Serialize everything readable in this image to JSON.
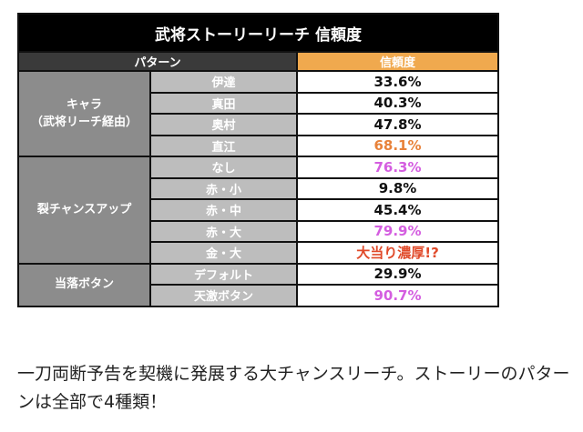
{
  "table": {
    "title": "武将ストーリーリーチ 信頼度",
    "header_pattern": "パターン",
    "header_value": "信頼度",
    "groups": [
      {
        "label_line1": "キャラ",
        "label_line2": "（武将リーチ経由）",
        "rows": [
          {
            "name": "伊達",
            "value": "33.6%",
            "color": "#111111"
          },
          {
            "name": "真田",
            "value": "40.3%",
            "color": "#111111"
          },
          {
            "name": "奥村",
            "value": "47.8%",
            "color": "#111111"
          },
          {
            "name": "直江",
            "value": "68.1%",
            "color": "#e8823a"
          }
        ]
      },
      {
        "label_line1": "裂チャンスアップ",
        "rows": [
          {
            "name": "なし",
            "value": "76.3%",
            "color": "#d45ee0"
          },
          {
            "name": "赤・小",
            "value": "9.8%",
            "color": "#111111"
          },
          {
            "name": "赤・中",
            "value": "45.4%",
            "color": "#111111"
          },
          {
            "name": "赤・大",
            "value": "79.9%",
            "color": "#d45ee0"
          },
          {
            "name": "金・大",
            "value": "大当り濃厚!?",
            "color": "#e04a2a"
          }
        ]
      },
      {
        "label_line1": "当落ボタン",
        "rows": [
          {
            "name": "デフォルト",
            "value": "29.9%",
            "color": "#111111"
          },
          {
            "name": "天激ボタン",
            "value": "90.7%",
            "color": "#d45ee0"
          }
        ]
      }
    ]
  },
  "description": "一刀両断予告を契機に発展する大チャンスリーチ。ストーリーのパターンは全部で4種類！"
}
